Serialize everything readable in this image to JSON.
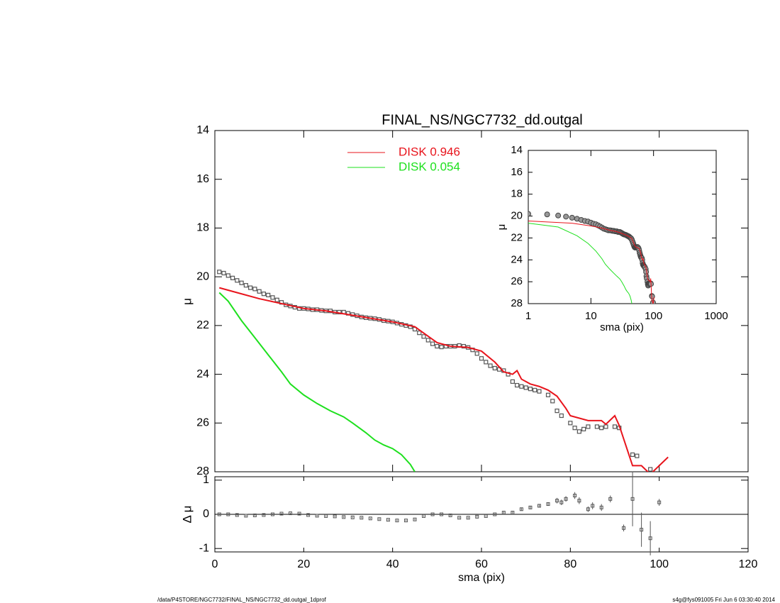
{
  "chart_data": [
    {
      "type": "line",
      "title": "FINAL_NS/NGC7732_dd.outgal",
      "y_label": "μ",
      "xlim": [
        0,
        120
      ],
      "ylim": [
        14,
        28
      ],
      "yticks": [
        14,
        16,
        18,
        20,
        22,
        24,
        26,
        28
      ],
      "y_inverted": true,
      "series": [
        {
          "mode": "markers",
          "color": "#555555",
          "x": [
            1,
            2,
            3,
            4,
            5,
            6,
            7,
            8,
            9,
            10,
            11,
            12,
            13,
            14,
            15,
            16,
            17,
            18,
            19,
            20,
            21,
            22,
            23,
            24,
            25,
            26,
            27,
            28,
            29,
            30,
            31,
            32,
            33,
            34,
            35,
            36,
            37,
            38,
            39,
            40,
            41,
            42,
            43,
            44,
            45,
            46,
            47,
            48,
            49,
            50,
            51,
            52,
            53,
            54,
            55,
            56,
            57,
            58,
            59,
            60,
            61,
            62,
            63,
            64,
            65,
            66,
            67,
            68,
            69,
            70,
            71,
            72,
            73,
            75,
            76,
            77,
            78,
            80,
            81,
            82,
            83,
            84,
            86,
            87,
            88,
            90,
            91,
            94,
            95,
            98
          ],
          "values": [
            19.8,
            19.85,
            19.95,
            20.05,
            20.15,
            20.25,
            20.35,
            20.45,
            20.5,
            20.6,
            20.7,
            20.75,
            20.85,
            20.95,
            21.05,
            21.15,
            21.2,
            21.25,
            21.3,
            21.3,
            21.32,
            21.35,
            21.35,
            21.38,
            21.4,
            21.4,
            21.45,
            21.45,
            21.45,
            21.5,
            21.55,
            21.6,
            21.65,
            21.68,
            21.7,
            21.72,
            21.75,
            21.8,
            21.82,
            21.85,
            21.9,
            21.95,
            22.0,
            22.05,
            22.15,
            22.3,
            22.45,
            22.6,
            22.75,
            22.85,
            22.88,
            22.85,
            22.85,
            22.85,
            22.82,
            22.85,
            22.9,
            23.0,
            23.15,
            23.35,
            23.5,
            23.65,
            23.75,
            23.8,
            23.85,
            24.0,
            24.3,
            24.45,
            24.5,
            24.55,
            24.6,
            24.65,
            24.7,
            24.85,
            25.1,
            25.5,
            25.7,
            26.0,
            26.2,
            26.35,
            26.25,
            26.15,
            26.15,
            26.2,
            26.15,
            26.15,
            26.2,
            27.3,
            27.35,
            27.9
          ]
        },
        {
          "mode": "lines",
          "name": "DISK  0.946",
          "color": "#e8141c",
          "x": [
            1,
            5,
            10,
            15,
            20,
            25,
            30,
            35,
            40,
            45,
            50,
            53,
            57,
            60,
            63,
            65,
            67,
            68,
            69,
            71,
            73,
            75,
            77,
            79,
            80,
            84,
            87,
            88,
            90,
            91,
            94,
            96,
            98,
            102
          ],
          "values": [
            20.45,
            20.65,
            20.9,
            21.1,
            21.3,
            21.4,
            21.55,
            21.7,
            21.85,
            22.05,
            22.7,
            22.85,
            22.9,
            23.05,
            23.5,
            23.9,
            24.0,
            23.85,
            24.2,
            24.4,
            24.5,
            24.65,
            24.9,
            25.4,
            25.7,
            25.9,
            25.9,
            26.05,
            25.7,
            26.1,
            27.75,
            27.75,
            28.1,
            27.4
          ]
        },
        {
          "mode": "lines",
          "name": "DISK  0.054",
          "color": "#1ee01e",
          "x": [
            1,
            3,
            6,
            9,
            12,
            15,
            17,
            20,
            23,
            26,
            29,
            31,
            34,
            36,
            38,
            40,
            42,
            44,
            45
          ],
          "values": [
            20.65,
            21.0,
            21.8,
            22.5,
            23.2,
            23.9,
            24.4,
            24.85,
            25.2,
            25.5,
            25.75,
            26.0,
            26.4,
            26.7,
            26.9,
            27.05,
            27.3,
            27.7,
            28.0
          ]
        }
      ]
    },
    {
      "type": "errorbar",
      "x_label": "sma (pix)",
      "y_label": "Δ μ",
      "xlim": [
        0,
        120
      ],
      "xticks": [
        0,
        20,
        40,
        60,
        80,
        100,
        120
      ],
      "ylim": [
        -1.1,
        1.1
      ],
      "yticks": [
        -1,
        0,
        1
      ],
      "x": [
        1,
        3,
        5,
        7,
        9,
        11,
        13,
        15,
        17,
        19,
        21,
        23,
        25,
        27,
        29,
        31,
        33,
        35,
        37,
        39,
        41,
        43,
        45,
        47,
        49,
        51,
        53,
        55,
        57,
        59,
        61,
        63,
        65,
        67,
        69,
        71,
        73,
        75,
        77,
        78,
        79,
        81,
        82,
        84,
        85,
        87,
        89,
        92,
        94,
        96,
        98,
        100
      ],
      "values": [
        0.0,
        0.0,
        -0.02,
        -0.04,
        -0.03,
        -0.02,
        0.0,
        0.02,
        0.03,
        0.02,
        -0.02,
        -0.04,
        -0.05,
        -0.06,
        -0.08,
        -0.09,
        -0.1,
        -0.12,
        -0.14,
        -0.16,
        -0.18,
        -0.18,
        -0.15,
        -0.05,
        0.0,
        0.0,
        -0.03,
        -0.1,
        -0.1,
        -0.07,
        -0.05,
        0.0,
        0.05,
        0.05,
        0.15,
        0.2,
        0.25,
        0.3,
        0.4,
        0.35,
        0.45,
        0.55,
        0.4,
        0.15,
        0.25,
        0.2,
        0.45,
        -0.4,
        0.45,
        -0.45,
        -0.7,
        0.35
      ],
      "errors": [
        0.02,
        0.02,
        0.02,
        0.02,
        0.02,
        0.02,
        0.02,
        0.02,
        0.02,
        0.02,
        0.02,
        0.02,
        0.02,
        0.02,
        0.02,
        0.02,
        0.02,
        0.02,
        0.02,
        0.02,
        0.02,
        0.02,
        0.02,
        0.02,
        0.02,
        0.02,
        0.02,
        0.02,
        0.02,
        0.02,
        0.02,
        0.02,
        0.03,
        0.03,
        0.04,
        0.04,
        0.05,
        0.05,
        0.08,
        0.08,
        0.08,
        0.1,
        0.1,
        0.08,
        0.1,
        0.1,
        0.1,
        0.1,
        0.8,
        0.5,
        0.5,
        0.1
      ],
      "color": "#555555"
    },
    {
      "type": "line",
      "x_label": "sma (pix)",
      "y_label": "μ",
      "xscale": "log",
      "xlim": [
        1,
        1000
      ],
      "xticks": [
        1,
        10,
        100,
        1000
      ],
      "ylim": [
        14,
        28
      ],
      "yticks": [
        14,
        16,
        18,
        20,
        22,
        24,
        26,
        28
      ],
      "y_inverted": true
    }
  ],
  "footer": {
    "left": "/data/P4STORE/NGC7732/FINAL_NS/NGC7732_dd.outgal_1dprof",
    "right": "s4g@fys091005  Fri Jun  6 03:30:40 2014"
  }
}
